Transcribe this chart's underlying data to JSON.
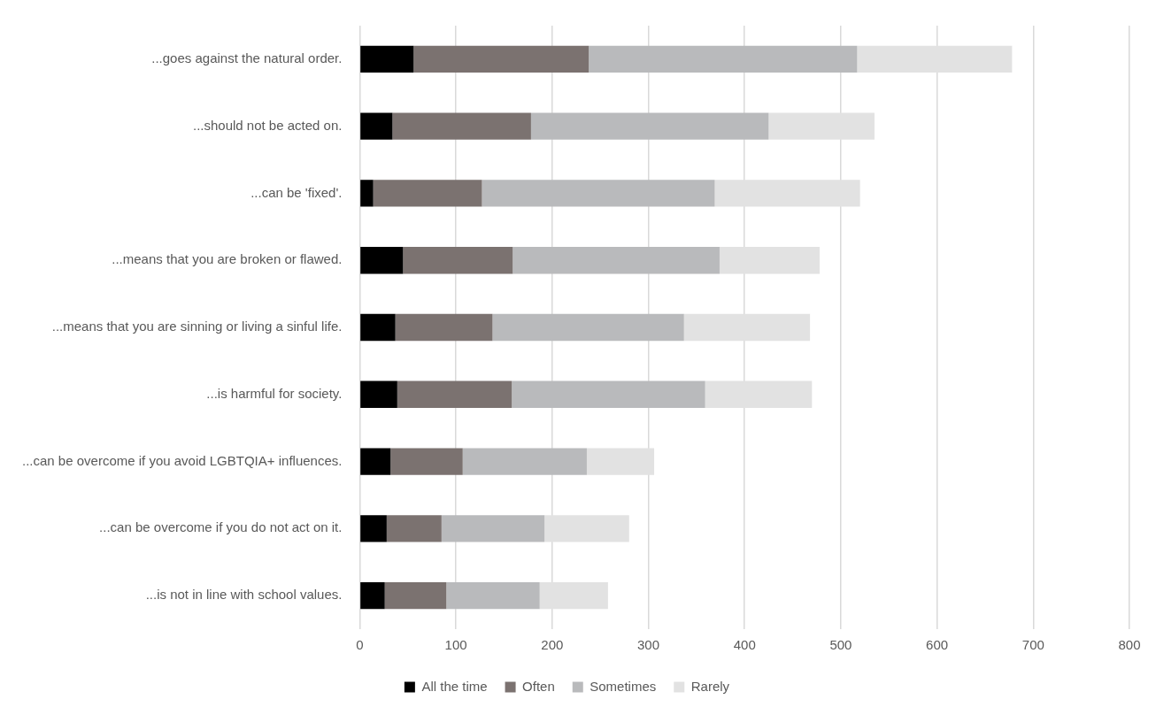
{
  "chart_data": {
    "type": "bar",
    "orientation": "horizontal",
    "stacked": true,
    "categories": [
      "...goes against the natural order.",
      "...should not be acted on.",
      "...can be 'fixed'.",
      "...means that you are broken or flawed.",
      "...means that you are sinning or living a sinful life.",
      "...is harmful for society.",
      "...can be overcome if you avoid LGBTQIA+ influences.",
      "...can be overcome if you do not act on it.",
      "...is not in line with school values."
    ],
    "series": [
      {
        "name": "All the time",
        "color": "#000000",
        "values": [
          56,
          34,
          14,
          45,
          37,
          39,
          32,
          28,
          26
        ]
      },
      {
        "name": "Often",
        "color": "#7b7270",
        "values": [
          182,
          144,
          113,
          114,
          101,
          119,
          75,
          57,
          64
        ]
      },
      {
        "name": "Sometimes",
        "color": "#b9babc",
        "values": [
          279,
          247,
          242,
          215,
          199,
          201,
          129,
          107,
          97
        ]
      },
      {
        "name": "Rarely",
        "color": "#e2e2e2",
        "values": [
          161,
          110,
          151,
          104,
          131,
          111,
          70,
          88,
          71
        ]
      }
    ],
    "xlim": [
      0,
      800
    ],
    "xticks": [
      0,
      100,
      200,
      300,
      400,
      500,
      600,
      700,
      800
    ],
    "grid": "x",
    "legend": "bottom"
  }
}
